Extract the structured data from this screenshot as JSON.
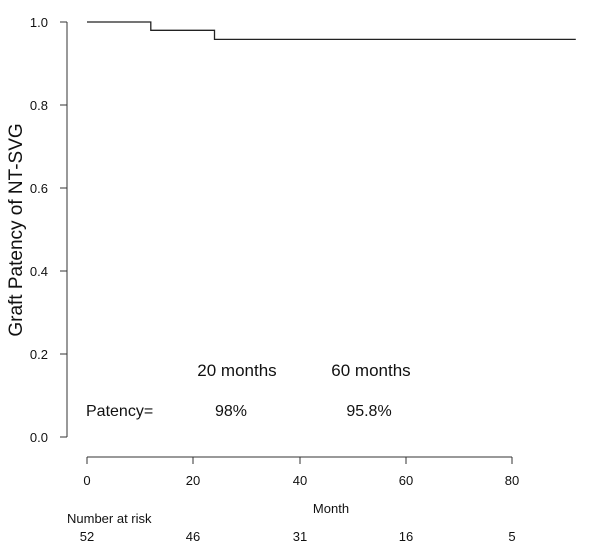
{
  "chart_data": {
    "type": "line",
    "step": true,
    "ylabel": "Graft Patency of NT-SVG",
    "xlabel": "Month",
    "xlim": [
      0,
      92
    ],
    "ylim": [
      0,
      1.0
    ],
    "x_ticks": [
      "0",
      "20",
      "40",
      "60",
      "80"
    ],
    "y_ticks": [
      "0.0",
      "0.2",
      "0.4",
      "0.6",
      "0.8",
      "1.0"
    ],
    "series": [
      {
        "x": [
          0,
          12,
          12,
          24,
          24,
          92
        ],
        "y": [
          1.0,
          1.0,
          0.98,
          0.98,
          0.958,
          0.958
        ]
      }
    ],
    "annotations": {
      "header_20": "20 months",
      "header_60": "60 months",
      "patency_label": "Patency=",
      "patency_20": "98%",
      "patency_60": "95.8%"
    },
    "risk_table": {
      "label": "Number at risk",
      "values": [
        "52",
        "46",
        "31",
        "16",
        "5"
      ]
    }
  }
}
